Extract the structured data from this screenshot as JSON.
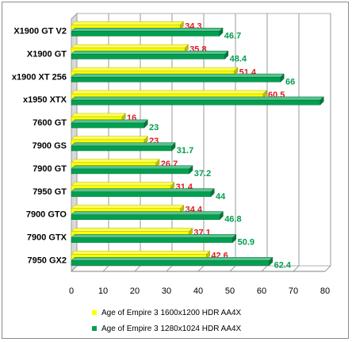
{
  "chart_data": {
    "type": "bar",
    "orientation": "horizontal",
    "style": "3d",
    "categories": [
      "X1900 GT V2",
      "X1900 GT",
      "x1900 XT 256",
      "x1950 XTX",
      "7600 GT",
      "7900 GS",
      "7900 GT",
      "7950 GT",
      "7900 GTO",
      "7900 GTX",
      "7950 GX2"
    ],
    "series": [
      {
        "name": "Age of Empire 3 1600x1200 HDR AA4X",
        "color": "#ffff00",
        "label_color": "#e31a1c",
        "values": [
          34.3,
          35.8,
          51.4,
          60.5,
          16,
          23,
          26.7,
          31.4,
          34.4,
          37.1,
          42.6
        ],
        "labels": [
          "34.3",
          "35.8",
          "51.4",
          "60.5",
          "16",
          "23",
          "26.7",
          "31.4",
          "34.4",
          "37.1",
          "42.6"
        ]
      },
      {
        "name": "Age of Empire 3 1280x1024 HDR AA4X",
        "color": "#00a050",
        "label_color": "#00a050",
        "values": [
          46.7,
          48.4,
          66,
          78.5,
          23,
          31.7,
          37.2,
          44,
          46.8,
          50.9,
          62.4
        ],
        "labels": [
          "46.7",
          "48.4",
          "66",
          "",
          "23",
          "31.7",
          "37.2",
          "44",
          "46.8",
          "50.9",
          "62.4"
        ]
      }
    ],
    "xlim": [
      0,
      80
    ],
    "xticks": [
      0,
      10,
      20,
      30,
      40,
      50,
      60,
      70,
      80
    ],
    "grid": "vertical",
    "legend": "bottom"
  }
}
